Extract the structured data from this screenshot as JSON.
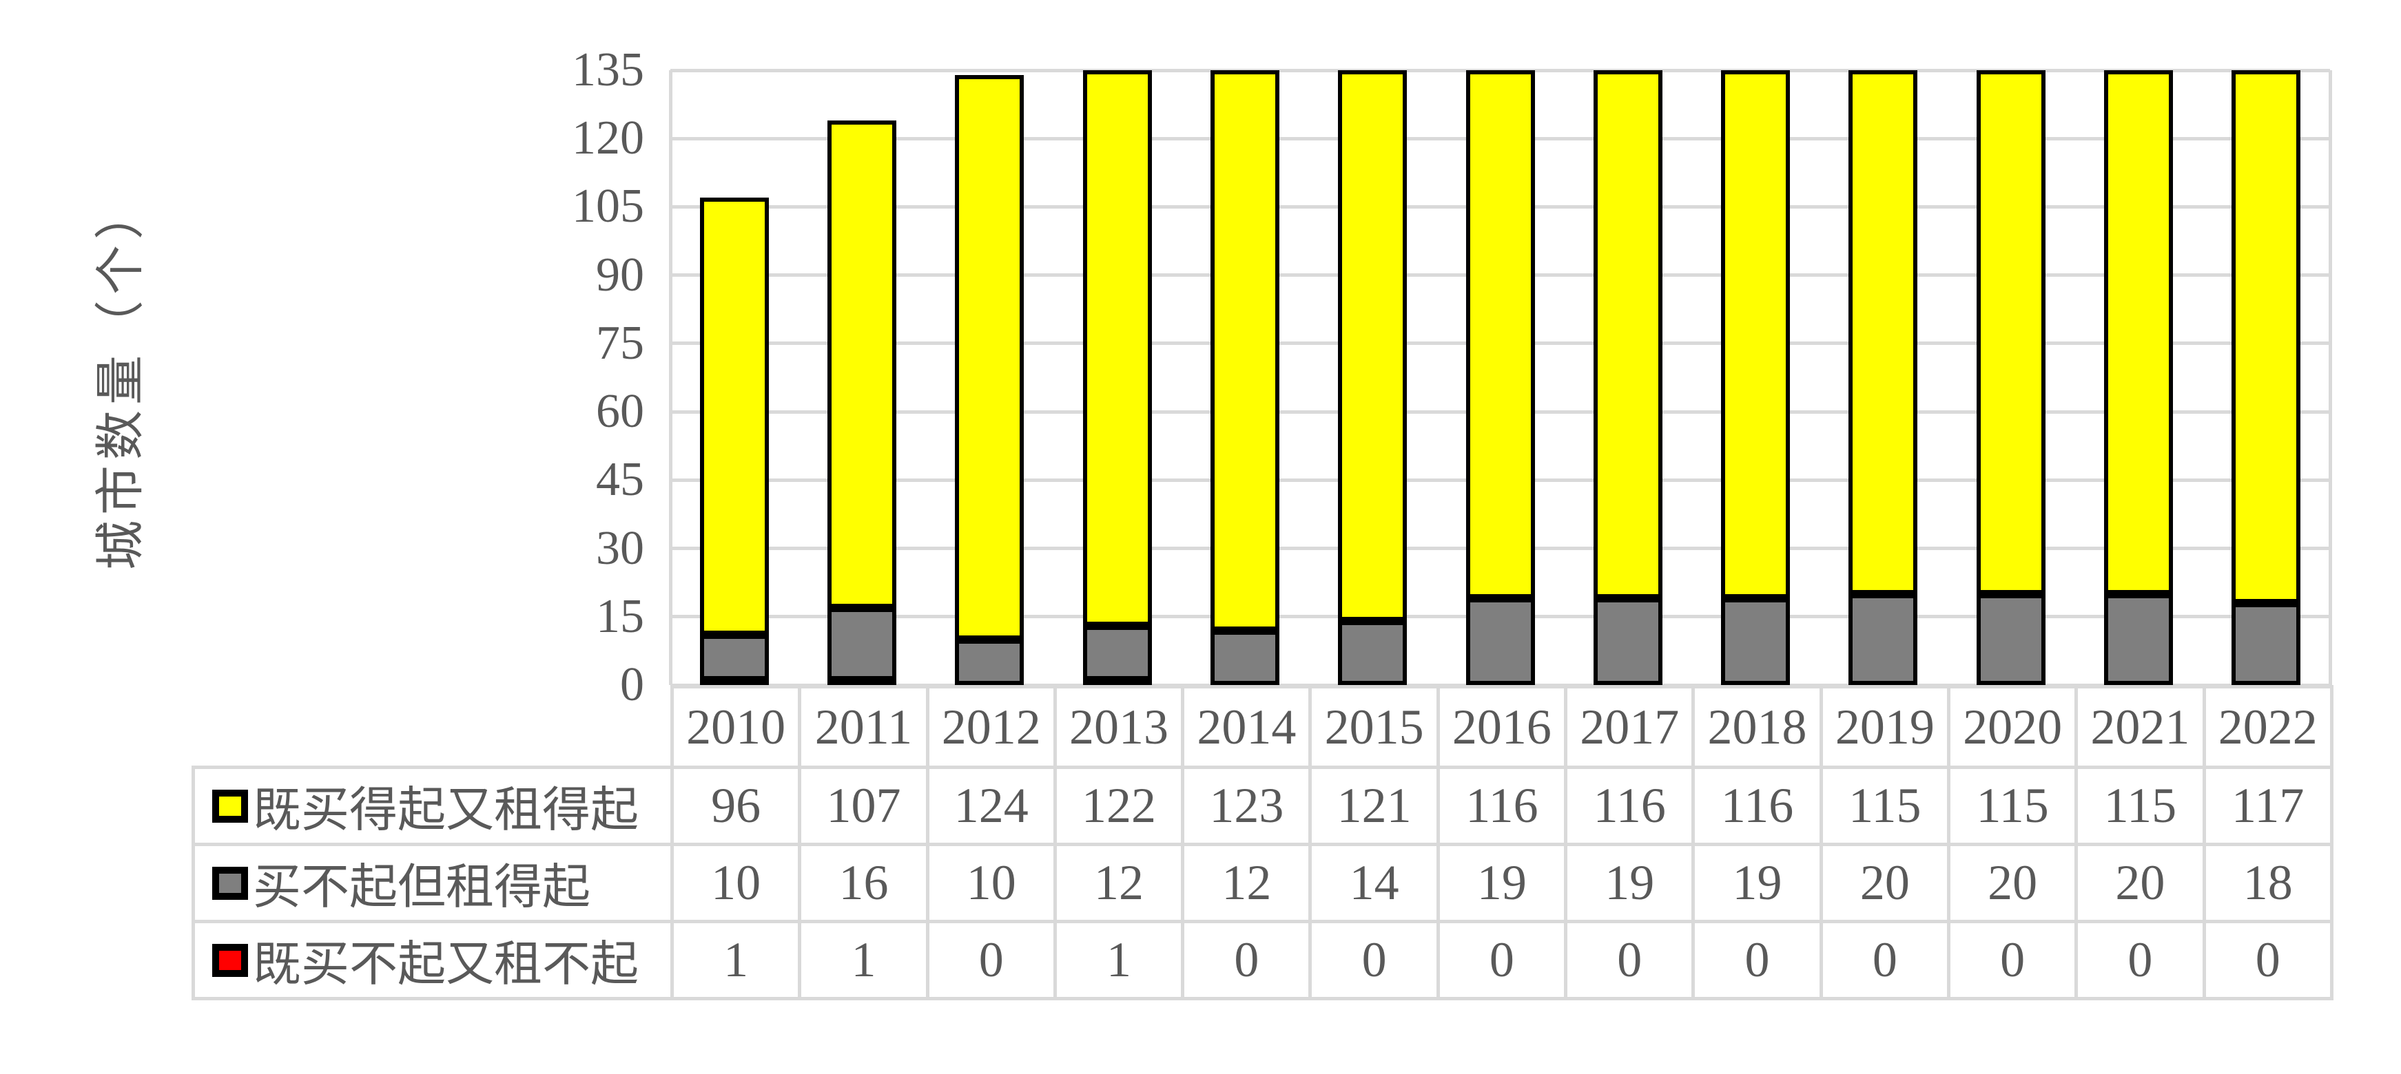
{
  "figure": {
    "background": "#FFFFFF",
    "text_color": "#595959",
    "grid_color": "#D9D9D9",
    "bar_border_color": "#000000"
  },
  "chart_data": {
    "type": "bar",
    "stacked": true,
    "title": "",
    "xlabel": "",
    "ylabel": "城市数量（个）",
    "ylim": [
      0,
      135
    ],
    "ytick_step": 15,
    "yticks": [
      0,
      15,
      30,
      45,
      60,
      75,
      90,
      105,
      120,
      135
    ],
    "grid": true,
    "legend_position": "data-table-left-column",
    "categories": [
      "2010",
      "2011",
      "2012",
      "2013",
      "2014",
      "2015",
      "2016",
      "2017",
      "2018",
      "2019",
      "2020",
      "2021",
      "2022"
    ],
    "series": [
      {
        "key": "affordable-buy-and-rent",
        "name": "既买得起又租得起",
        "color": "#FFFF00",
        "values": [
          96,
          107,
          124,
          122,
          123,
          121,
          116,
          116,
          116,
          115,
          115,
          115,
          117
        ]
      },
      {
        "key": "rent-only-affordable",
        "name": "买不起但租得起",
        "color": "#7F7F7F",
        "values": [
          10,
          16,
          10,
          12,
          12,
          14,
          19,
          19,
          19,
          20,
          20,
          20,
          18
        ]
      },
      {
        "key": "neither-affordable",
        "name": "既买不起又租不起",
        "color": "#FF0000",
        "values": [
          1,
          1,
          0,
          1,
          0,
          0,
          0,
          0,
          0,
          0,
          0,
          0,
          0
        ]
      }
    ],
    "stack_order_bottom_to_top": [
      "既买不起又租不起",
      "买不起但租得起",
      "既买得起又租得起"
    ]
  }
}
